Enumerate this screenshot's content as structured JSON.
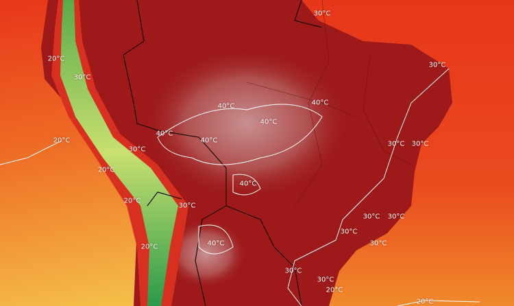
{
  "map": {
    "type": "temperature heat map",
    "colors": {
      "ocean_hot": "#e8361a",
      "ocean_warm": "#f07a2a",
      "ocean_mild": "#f5c24a",
      "land_hot": "#9e1a1a",
      "land_extreme": "#c89090",
      "andes_cool": "#c8e070",
      "andes_cold": "#2a9a4a",
      "contour": "#ffffff",
      "borders": "#1a0a0a"
    },
    "isotherm_labels": [
      "30°C",
      "30°C",
      "20°C",
      "30°C",
      "20°C",
      "40°C",
      "40°C",
      "40°C",
      "40°C",
      "30°C",
      "20°C",
      "20°C",
      "30°C",
      "40°C",
      "30°C",
      "30°C",
      "30°C",
      "30°C",
      "30°C",
      "30°C",
      "40°C",
      "20°C",
      "40°C",
      "30°C",
      "30°C",
      "20°C",
      "20°C"
    ]
  }
}
